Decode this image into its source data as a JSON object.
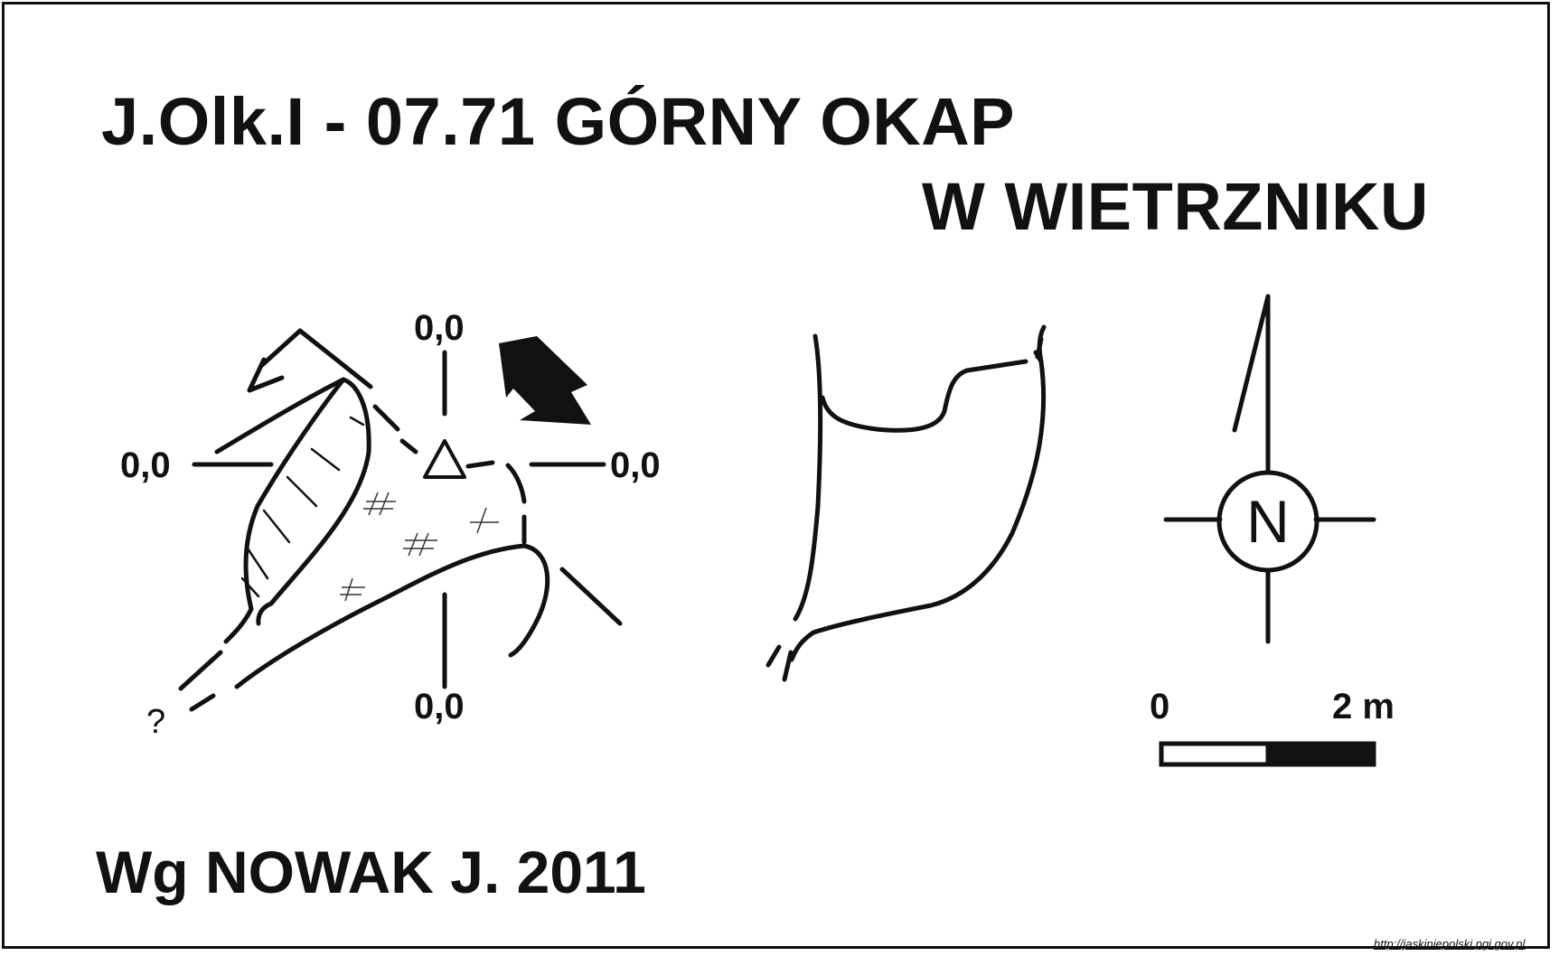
{
  "title": {
    "line1": "J.Olk.I - 07.71  GÓRNY OKAP",
    "line2": "W WIETRZNIKU"
  },
  "credit": "Wg NOWAK J. 2011",
  "plan_labels": {
    "top": "0,0",
    "left": "0,0",
    "right": "0,0",
    "bottom": "0,0",
    "unknown": "?"
  },
  "scale_bar": {
    "start_label": "0",
    "end_label": "2 m"
  },
  "north_arrow": {
    "letter": "N"
  },
  "source_url": "http://jaskiniepolski.pgi.gov.pl",
  "colors": {
    "ink": "#111111",
    "background": "#ffffff"
  },
  "icons": [
    "north-arrow-icon",
    "entrance-arrow-icon",
    "survey-point-icon",
    "drip-line-arrow-icon"
  ]
}
